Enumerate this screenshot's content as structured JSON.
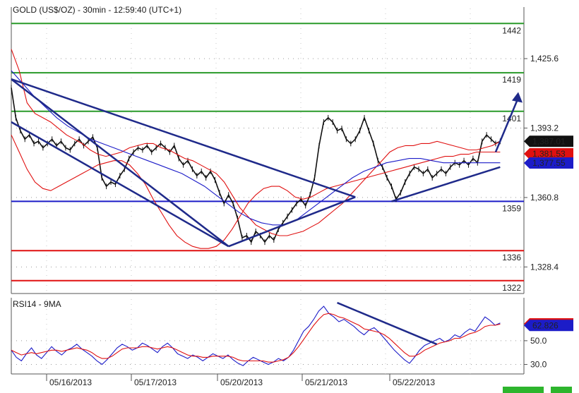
{
  "chart_data": [
    {
      "type": "line",
      "title": "GOLD (US$/OZ) - 30min - 12:59:40 (UTC+1)",
      "y_ticks": [
        "1,425.6",
        "1,393.2",
        "1,360.8",
        "1,328.4"
      ],
      "y_tick_values": [
        1425.6,
        1393.2,
        1360.8,
        1328.4
      ],
      "ylim": [
        1316,
        1449
      ],
      "x_ticks": [
        "05/16/2013",
        "05/17/2013",
        "05/20/2013",
        "05/21/2013",
        "05/22/2013"
      ],
      "grid": true,
      "levels": [
        {
          "label": "1442",
          "value": 1442,
          "color": "#2a9a2a"
        },
        {
          "label": "1419",
          "value": 1419,
          "color": "#2a9a2a"
        },
        {
          "label": "1401",
          "value": 1401,
          "color": "#2a9a2a"
        },
        {
          "label": "1359",
          "value": 1359,
          "color": "#1c1cc8"
        },
        {
          "label": "1336",
          "value": 1336,
          "color": "#e01010"
        },
        {
          "label": "1322",
          "value": 1322,
          "color": "#e01010"
        }
      ],
      "price_tags": [
        {
          "label": "1,387.01",
          "value": 1387.01,
          "bg": "#111111",
          "fg": "#ffffff"
        },
        {
          "label": "1,381.53",
          "value": 1381.53,
          "bg": "#e01010",
          "fg": "#ffffff"
        },
        {
          "label": "1,377.55",
          "value": 1377.55,
          "bg": "#1c1cc8",
          "fg": "#ffffff"
        }
      ],
      "series": [
        {
          "color": "#111111",
          "values": [
            1412,
            1398,
            1392,
            1388,
            1390,
            1386,
            1387,
            1384,
            1386,
            1388,
            1385,
            1387,
            1384,
            1383,
            1386,
            1388,
            1385,
            1387,
            1389,
            1384,
            1370,
            1366,
            1368,
            1367,
            1371,
            1374,
            1379,
            1382,
            1384,
            1383,
            1385,
            1382,
            1384,
            1386,
            1384,
            1382,
            1385,
            1379,
            1376,
            1378,
            1374,
            1371,
            1373,
            1370,
            1373,
            1369,
            1363,
            1358,
            1362,
            1358,
            1351,
            1342,
            1343,
            1340,
            1345,
            1343,
            1340,
            1343,
            1341,
            1346,
            1349,
            1352,
            1355,
            1358,
            1360,
            1357,
            1362,
            1370,
            1385,
            1396,
            1398,
            1396,
            1392,
            1393,
            1388,
            1386,
            1388,
            1392,
            1398,
            1392,
            1386,
            1378,
            1375,
            1370,
            1366,
            1360,
            1363,
            1368,
            1372,
            1375,
            1374,
            1372,
            1374,
            1370,
            1372,
            1374,
            1372,
            1375,
            1377,
            1376,
            1378,
            1376,
            1379,
            1377,
            1387,
            1390,
            1388,
            1386,
            1387
          ],
          "x_start": 0,
          "x_end": 108
        },
        {
          "color": "#e01010",
          "values": [
            1430,
            1420,
            1405,
            1400,
            1398,
            1396,
            1393,
            1390,
            1388,
            1386,
            1383,
            1381,
            1380,
            1381,
            1382,
            1384,
            1385,
            1386,
            1386,
            1384,
            1383,
            1381,
            1379,
            1378,
            1376,
            1374,
            1372,
            1368,
            1362,
            1356,
            1352,
            1348,
            1346,
            1344,
            1343,
            1343,
            1344,
            1345,
            1347,
            1349,
            1352,
            1355,
            1358,
            1362,
            1366,
            1370,
            1374,
            1378,
            1382,
            1384,
            1385,
            1385,
            1386,
            1386,
            1387,
            1386,
            1385,
            1384,
            1383,
            1383,
            1384,
            1385,
            1387
          ],
          "x_start": 0,
          "x_end": 108
        },
        {
          "color": "#e01010",
          "values": [
            1390,
            1382,
            1374,
            1368,
            1365,
            1364,
            1366,
            1368,
            1370,
            1372,
            1374,
            1376,
            1377,
            1378,
            1378,
            1376,
            1372,
            1367,
            1360,
            1354,
            1348,
            1343,
            1340,
            1338,
            1337,
            1337,
            1338,
            1341,
            1346,
            1352,
            1358,
            1362,
            1365,
            1366,
            1366,
            1364,
            1361,
            1360,
            1361,
            1363,
            1365,
            1366,
            1367,
            1368,
            1369,
            1370,
            1371,
            1372,
            1373,
            1374,
            1375,
            1376,
            1377,
            1378,
            1379,
            1380,
            1380,
            1381,
            1381,
            1382,
            1382,
            1382,
            1382
          ],
          "x_start": 0,
          "x_end": 108
        },
        {
          "color": "#1c1cc8",
          "values": [
            1420,
            1414,
            1408,
            1403,
            1398,
            1394,
            1391,
            1388,
            1386,
            1384,
            1382,
            1380,
            1378,
            1376,
            1374,
            1372,
            1369,
            1366,
            1362,
            1358,
            1354,
            1351,
            1349,
            1348,
            1348,
            1350,
            1354,
            1358,
            1362,
            1366,
            1370,
            1373,
            1375,
            1377,
            1378,
            1379,
            1379,
            1378,
            1377,
            1377,
            1377,
            1377,
            1377,
            1377
          ],
          "x_start": 0,
          "x_end": 108
        }
      ],
      "trendlines": [
        {
          "x1": 0,
          "y1": 1416,
          "x2": 48,
          "y2": 1338
        },
        {
          "x1": 0,
          "y1": 1396,
          "x2": 48,
          "y2": 1338
        },
        {
          "x1": 0,
          "y1": 1416,
          "x2": 76,
          "y2": 1361
        },
        {
          "x1": 48,
          "y1": 1338,
          "x2": 76,
          "y2": 1361
        },
        {
          "x1": 84,
          "y1": 1359,
          "x2": 108,
          "y2": 1375
        }
      ],
      "arrow": {
        "x1": 107,
        "y1": 1382,
        "x2": 112,
        "y2": 1410
      }
    },
    {
      "type": "line",
      "title": "RSI14 - 9MA",
      "y_ticks": [
        "50.0",
        "30.0"
      ],
      "y_tick_values": [
        50,
        30
      ],
      "ylim": [
        22,
        85
      ],
      "grid": true,
      "price_tags": [
        {
          "label": "64.1767",
          "value": 64.18,
          "bg": "#e01010",
          "fg": "#ffffff"
        },
        {
          "label": "62.826",
          "value": 62.83,
          "bg": "#1c1cc8",
          "fg": "#ffffff"
        }
      ],
      "series": [
        {
          "color": "#1c1cc8",
          "values": [
            42,
            36,
            33,
            39,
            44,
            38,
            35,
            40,
            45,
            41,
            38,
            42,
            44,
            47,
            43,
            40,
            37,
            33,
            30,
            34,
            39,
            44,
            47,
            45,
            42,
            44,
            48,
            46,
            43,
            40,
            45,
            48,
            44,
            39,
            37,
            35,
            38,
            36,
            33,
            36,
            39,
            37,
            35,
            38,
            34,
            31,
            29,
            33,
            36,
            34,
            32,
            30,
            32,
            35,
            33,
            36,
            42,
            50,
            58,
            62,
            68,
            75,
            79,
            73,
            70,
            66,
            68,
            65,
            62,
            58,
            55,
            59,
            61,
            57,
            52,
            47,
            42,
            38,
            34,
            31,
            36,
            42,
            46,
            48,
            50,
            52,
            49,
            51,
            55,
            53,
            57,
            60,
            58,
            64,
            70,
            67,
            63,
            65
          ],
          "x_start": 0,
          "x_end": 108
        },
        {
          "color": "#e01010",
          "values": [
            42,
            40,
            38,
            39,
            40,
            39,
            40,
            41,
            42,
            42,
            41,
            42,
            43,
            44,
            43,
            42,
            40,
            37,
            35,
            35,
            37,
            40,
            43,
            44,
            44,
            44,
            45,
            45,
            44,
            43,
            44,
            45,
            44,
            42,
            40,
            38,
            37,
            37,
            36,
            36,
            37,
            37,
            37,
            37,
            36,
            34,
            33,
            33,
            33,
            33,
            33,
            32,
            32,
            33,
            34,
            36,
            40,
            45,
            51,
            57,
            63,
            68,
            72,
            73,
            72,
            70,
            69,
            67,
            65,
            63,
            60,
            59,
            58,
            57,
            55,
            52,
            48,
            44,
            40,
            37,
            37,
            39,
            42,
            44,
            46,
            48,
            49,
            50,
            52,
            52,
            54,
            56,
            57,
            59,
            62,
            63,
            63,
            64
          ],
          "x_start": 0,
          "x_end": 108
        }
      ],
      "trendlines": [
        {
          "x1": 72,
          "y1": 82,
          "x2": 94,
          "y2": 47
        }
      ]
    }
  ]
}
